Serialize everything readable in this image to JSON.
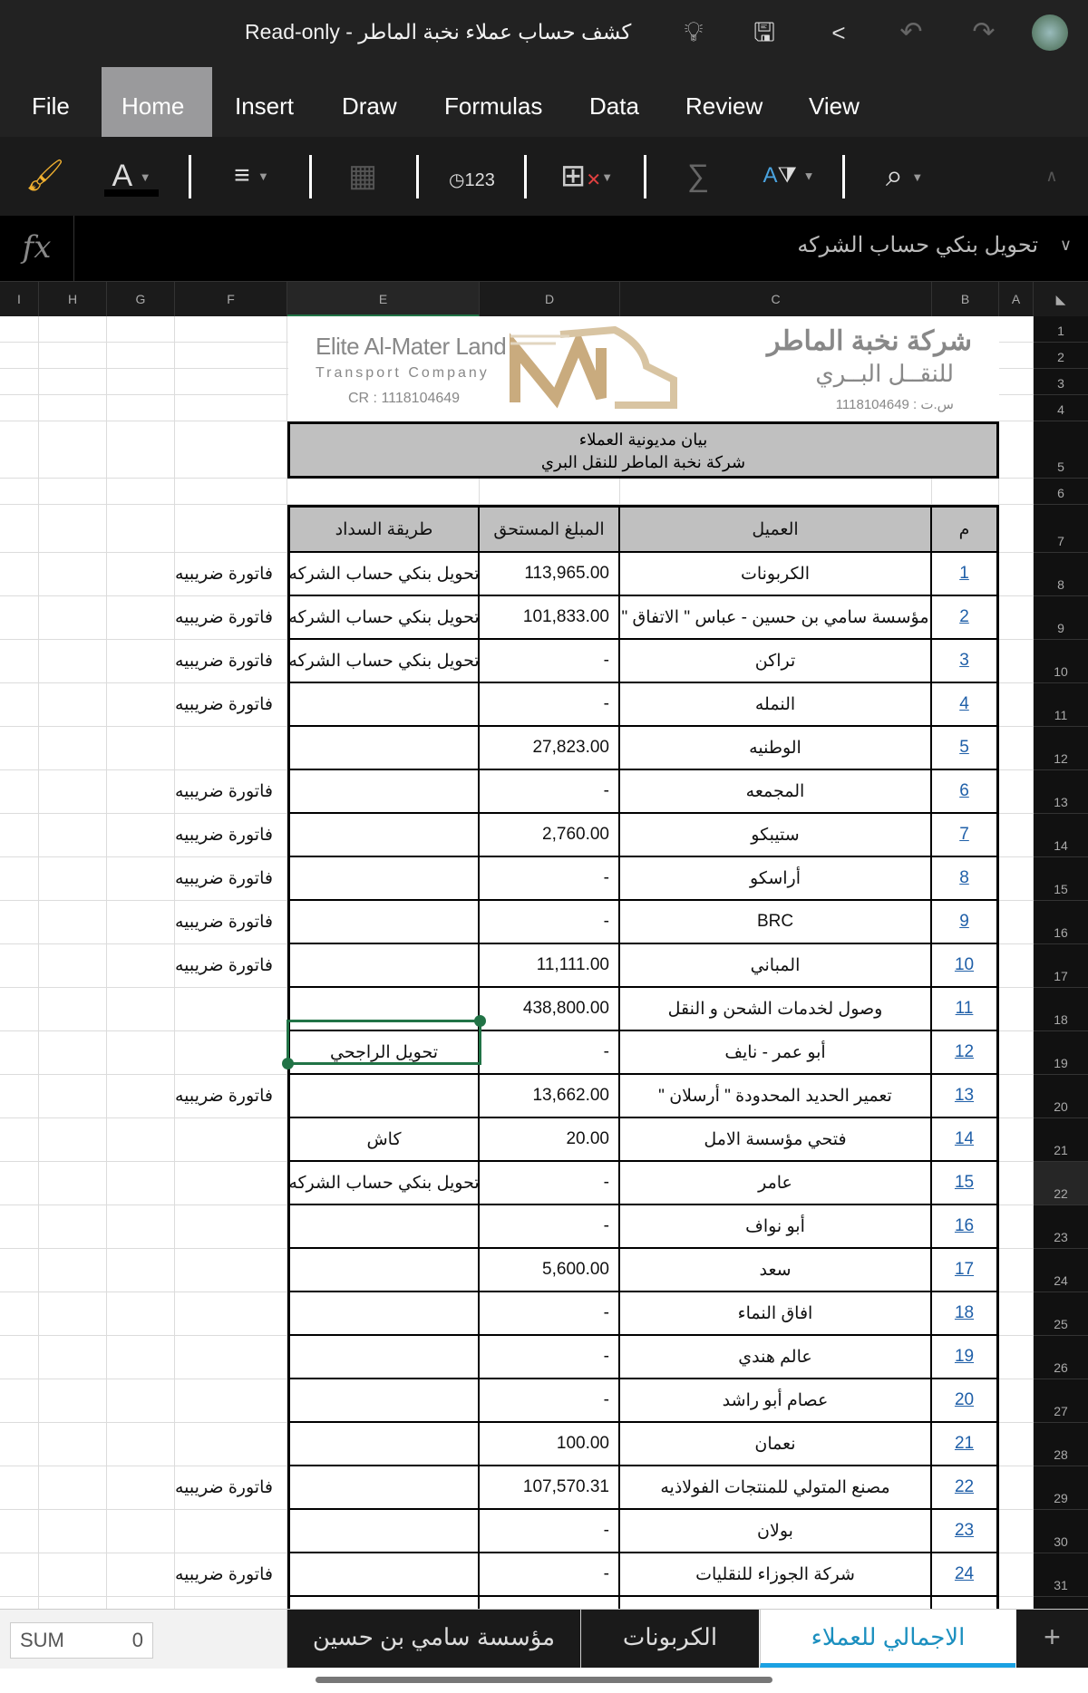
{
  "window": {
    "title": "Read-only - كشف حساب عملاء نخبة الماطر"
  },
  "menu": [
    "File",
    "Home",
    "Insert",
    "Draw",
    "Formulas",
    "Data",
    "Review",
    "View"
  ],
  "menu_active": "Home",
  "formula_bar": {
    "fx": "fx",
    "value": "تحويل بنكي حساب الشركه"
  },
  "columns": [
    "I",
    "H",
    "G",
    "F",
    "E",
    "D",
    "C",
    "B",
    "A"
  ],
  "selected_cell": "E22",
  "logo": {
    "en_name": "Elite Al-Mater Land",
    "en_sub": "Transport Company",
    "en_cr": "CR : 1118104649",
    "ar_name": "شركة نخبة الماطر",
    "ar_sub": "للنقــل البــري",
    "ar_cr": "س.ت : 1118104649"
  },
  "banner": {
    "line1": "بيان مديونية العملاء",
    "line2": "شركة نخبة الماطر للنقل البري"
  },
  "table": {
    "headers": {
      "num": "م",
      "client": "العميل",
      "amount": "المبلغ المستحق",
      "method": "طريقة السداد"
    },
    "rows": [
      {
        "num": "1",
        "client": "الكربونات",
        "amount": "113,965.00",
        "method": "تحويل بنكي حساب الشركه",
        "note": "فاتورة ضريبيه"
      },
      {
        "num": "2",
        "client": "مؤسسة سامي بن حسين - عباس \" الاتفاق \"",
        "amount": "101,833.00",
        "method": "تحويل بنكي حساب الشركه",
        "note": "فاتورة ضريبيه"
      },
      {
        "num": "3",
        "client": "تراكن",
        "amount": "-",
        "method": "تحويل بنكي حساب الشركه",
        "note": "فاتورة ضريبيه"
      },
      {
        "num": "4",
        "client": "النمله",
        "amount": "-",
        "method": "",
        "note": "فاتورة ضريبيه"
      },
      {
        "num": "5",
        "client": "الوطنيه",
        "amount": "27,823.00",
        "method": "",
        "note": ""
      },
      {
        "num": "6",
        "client": "المجمعه",
        "amount": "-",
        "method": "",
        "note": "فاتورة ضريبيه"
      },
      {
        "num": "7",
        "client": "ستيبكو",
        "amount": "2,760.00",
        "method": "",
        "note": "فاتورة ضريبيه"
      },
      {
        "num": "8",
        "client": "أراسكو",
        "amount": "-",
        "method": "",
        "note": "فاتورة ضريبيه"
      },
      {
        "num": "9",
        "client": "BRC",
        "amount": "-",
        "method": "",
        "note": "فاتورة ضريبيه"
      },
      {
        "num": "10",
        "client": "المباني",
        "amount": "11,111.00",
        "method": "",
        "note": "فاتورة ضريبيه"
      },
      {
        "num": "11",
        "client": "وصول لخدمات الشحن و النقل",
        "amount": "438,800.00",
        "method": "",
        "note": ""
      },
      {
        "num": "12",
        "client": "أبو عمر - نايف",
        "amount": "-",
        "method": "تحويل الراجحي",
        "note": ""
      },
      {
        "num": "13",
        "client": "تعمير الحديد المحدودة \" أرسلان \"",
        "amount": "13,662.00",
        "method": "",
        "note": "فاتورة ضريبيه"
      },
      {
        "num": "14",
        "client": "فتحي مؤسسة الامل",
        "amount": "20.00",
        "method": "كاش",
        "note": ""
      },
      {
        "num": "15",
        "client": "عامر",
        "amount": "-",
        "method": "تحويل بنكي حساب الشركه",
        "note": ""
      },
      {
        "num": "16",
        "client": "أبو نواف",
        "amount": "-",
        "method": "",
        "note": ""
      },
      {
        "num": "17",
        "client": "سعد",
        "amount": "5,600.00",
        "method": "",
        "note": ""
      },
      {
        "num": "18",
        "client": "افاق النماء",
        "amount": "-",
        "method": "",
        "note": ""
      },
      {
        "num": "19",
        "client": "عالم هندي",
        "amount": "-",
        "method": "",
        "note": ""
      },
      {
        "num": "20",
        "client": "عصام أبو راشد",
        "amount": "-",
        "method": "",
        "note": ""
      },
      {
        "num": "21",
        "client": "نعمان",
        "amount": "100.00",
        "method": "",
        "note": ""
      },
      {
        "num": "22",
        "client": "مصنع المتولي للمنتجات الفولاذيه",
        "amount": "107,570.31",
        "method": "",
        "note": "فاتورة ضريبيه"
      },
      {
        "num": "23",
        "client": "بولان",
        "amount": "-",
        "method": "",
        "note": ""
      },
      {
        "num": "24",
        "client": "شركة الجوزاء للنقليات",
        "amount": "-",
        "method": "",
        "note": "فاتورة ضريبيه"
      }
    ]
  },
  "status": {
    "sum_label": "SUM",
    "sum_value": "0"
  },
  "sheets": [
    "الاجمالي للعملاء",
    "الكربونات",
    "مؤسسة سامي بن حسين"
  ],
  "sheet_active": "الاجمالي للعملاء",
  "add_sheet": "+",
  "colors": {
    "selection": "#217346",
    "active_tab": "#1ba1e2",
    "header_fill": "#c0c0c0"
  }
}
